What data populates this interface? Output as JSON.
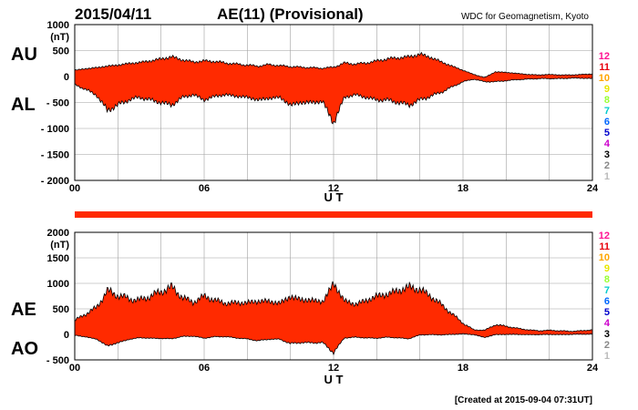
{
  "header": {
    "date": "2015/04/11",
    "title": "AE(11) (Provisional)",
    "source": "WDC for Geomagnetism, Kyoto"
  },
  "footer": {
    "created": "[Created at 2015-09-04 07:31UT]"
  },
  "station_legend": {
    "labels": [
      "12",
      "11",
      "10",
      "9",
      "8",
      "7",
      "6",
      "5",
      "4",
      "3",
      "2",
      "1"
    ],
    "colors": [
      "#ff1493",
      "#e8000b",
      "#ffa500",
      "#e8e800",
      "#99ff33",
      "#00cccc",
      "#0066ff",
      "#0000cc",
      "#cc00cc",
      "#000000",
      "#888888",
      "#bbbbbb"
    ]
  },
  "colors": {
    "fill": "#ff2a00",
    "outline": "#000000",
    "grid": "#a0a0a0",
    "bar": "#ff2a00"
  },
  "chart_data": [
    {
      "type": "area",
      "name": "AU/AL",
      "unit_label": "(nT)",
      "xlabel": "U T",
      "x_ticks": [
        "00",
        "06",
        "12",
        "18",
        "24"
      ],
      "xlim": [
        0,
        24
      ],
      "ylim": [
        -2000,
        1000
      ],
      "y_ticks": [
        {
          "v": 1000,
          "label": "1000"
        },
        {
          "v": 500,
          "label": "500"
        },
        {
          "v": 0,
          "label": "0"
        },
        {
          "v": -500,
          "label": "- 500"
        },
        {
          "v": -1000,
          "label": "- 1000"
        },
        {
          "v": -1500,
          "label": "- 1500"
        },
        {
          "v": -2000,
          "label": "- 2000"
        }
      ],
      "side_labels": {
        "upper": "AU",
        "lower": "AL"
      },
      "grid": true,
      "hours": [
        0,
        0.5,
        1,
        1.5,
        2,
        2.5,
        3,
        3.5,
        4,
        4.5,
        5,
        5.5,
        6,
        6.5,
        7,
        7.5,
        8,
        8.5,
        9,
        9.5,
        10,
        10.5,
        11,
        11.5,
        12,
        12.5,
        13,
        13.5,
        14,
        14.5,
        15,
        15.5,
        16,
        16.5,
        17,
        17.5,
        18,
        18.5,
        19,
        19.5,
        20,
        20.5,
        21,
        21.5,
        22,
        22.5,
        23,
        23.5,
        24
      ],
      "series": [
        {
          "name": "AU",
          "values": [
            120,
            150,
            170,
            200,
            220,
            250,
            270,
            300,
            340,
            380,
            320,
            280,
            300,
            290,
            260,
            240,
            220,
            200,
            230,
            210,
            190,
            180,
            170,
            160,
            180,
            260,
            240,
            260,
            300,
            340,
            360,
            380,
            430,
            370,
            280,
            200,
            120,
            40,
            -20,
            90,
            80,
            60,
            40,
            30,
            40,
            30,
            30,
            40,
            50
          ]
        },
        {
          "name": "AL",
          "values": [
            -150,
            -250,
            -350,
            -650,
            -550,
            -450,
            -400,
            -450,
            -500,
            -550,
            -400,
            -350,
            -450,
            -380,
            -350,
            -380,
            -400,
            -450,
            -420,
            -400,
            -550,
            -500,
            -500,
            -480,
            -900,
            -400,
            -350,
            -400,
            -450,
            -450,
            -500,
            -550,
            -450,
            -380,
            -300,
            -200,
            -100,
            -50,
            -100,
            -100,
            -80,
            -60,
            -50,
            -40,
            -40,
            -40,
            -30,
            -30,
            -40
          ]
        }
      ]
    },
    {
      "type": "area",
      "name": "AE/AO",
      "unit_label": "(nT)",
      "xlabel": "U T",
      "x_ticks": [
        "00",
        "06",
        "12",
        "18",
        "24"
      ],
      "xlim": [
        0,
        24
      ],
      "ylim": [
        -500,
        2000
      ],
      "y_ticks": [
        {
          "v": 2000,
          "label": "2000"
        },
        {
          "v": 1500,
          "label": "1500"
        },
        {
          "v": 1000,
          "label": "1000"
        },
        {
          "v": 500,
          "label": "500"
        },
        {
          "v": 0,
          "label": "0"
        },
        {
          "v": -500,
          "label": "- 500"
        }
      ],
      "side_labels": {
        "upper": "AE",
        "lower": "AO"
      },
      "grid": true,
      "hours": [
        0,
        0.5,
        1,
        1.5,
        2,
        2.5,
        3,
        3.5,
        4,
        4.5,
        5,
        5.5,
        6,
        6.5,
        7,
        7.5,
        8,
        8.5,
        9,
        9.5,
        10,
        10.5,
        11,
        11.5,
        12,
        12.5,
        13,
        13.5,
        14,
        14.5,
        15,
        15.5,
        16,
        16.5,
        17,
        17.5,
        18,
        18.5,
        19,
        19.5,
        20,
        20.5,
        21,
        21.5,
        22,
        22.5,
        23,
        23.5,
        24
      ],
      "series": [
        {
          "name": "AE",
          "values": [
            270,
            400,
            520,
            850,
            770,
            700,
            670,
            750,
            840,
            930,
            720,
            630,
            750,
            670,
            610,
            620,
            620,
            650,
            650,
            610,
            740,
            680,
            670,
            640,
            1000,
            660,
            590,
            660,
            750,
            790,
            860,
            930,
            880,
            750,
            580,
            400,
            220,
            90,
            80,
            190,
            160,
            120,
            90,
            70,
            80,
            70,
            60,
            70,
            90
          ]
        },
        {
          "name": "AO",
          "values": [
            -15,
            -50,
            -90,
            -225,
            -165,
            -100,
            -65,
            -75,
            -80,
            -85,
            -40,
            -35,
            -75,
            -45,
            -45,
            -70,
            -90,
            -125,
            -95,
            -95,
            -180,
            -160,
            -165,
            -160,
            -360,
            -70,
            -55,
            -70,
            -75,
            -55,
            -70,
            -85,
            -10,
            -5,
            -10,
            0,
            10,
            -5,
            -60,
            -5,
            0,
            0,
            -5,
            -5,
            0,
            -5,
            0,
            5,
            5
          ]
        }
      ]
    }
  ]
}
